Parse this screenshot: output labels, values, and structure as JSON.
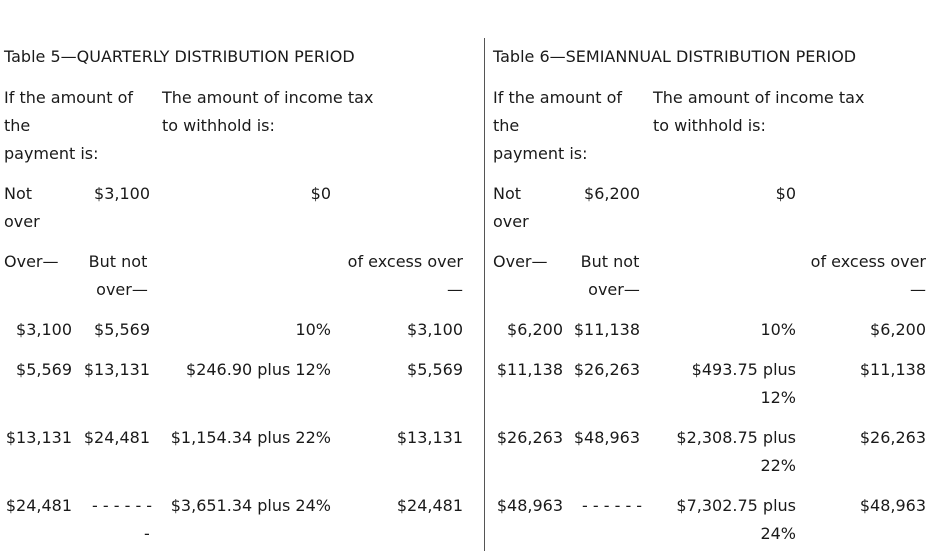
{
  "tables": [
    {
      "title": "Table 5—QUARTERLY DISTRIBUTION PERIOD",
      "header_amount": [
        "If the amount of",
        "the",
        "payment is:"
      ],
      "header_tax": [
        "The amount of income tax",
        "to withhold is:"
      ],
      "not_over_label": [
        "Not",
        "over"
      ],
      "not_over_value": "$3,100",
      "not_over_tax": "$0",
      "col_over": "Over—",
      "col_but_not": [
        "But not",
        "over—"
      ],
      "col_excess": [
        "of excess over",
        "—"
      ],
      "rows": [
        {
          "over": "$3,100",
          "but_not_over": "$5,569",
          "tax": [
            "10%"
          ],
          "excess_over": "$3,100"
        },
        {
          "over": "$5,569",
          "but_not_over": "$13,131",
          "tax": [
            "$246.90 plus 12%"
          ],
          "excess_over": "$5,569"
        },
        {
          "over": "$13,131",
          "but_not_over": "$24,481",
          "tax": [
            "$1,154.34 plus 22%"
          ],
          "excess_over": "$13,131"
        },
        {
          "over": "$24,481",
          "but_not_over": [
            "- - - - - -",
            "-"
          ],
          "tax": [
            "$3,651.34 plus 24%"
          ],
          "excess_over": "$24,481"
        }
      ]
    },
    {
      "title": "Table 6—SEMIANNUAL DISTRIBUTION PERIOD",
      "header_amount": [
        "If the amount of",
        "the",
        "payment is:"
      ],
      "header_tax": [
        "The amount of income tax",
        "to withhold is:"
      ],
      "not_over_label": [
        "Not",
        "over"
      ],
      "not_over_value": "$6,200",
      "not_over_tax": "$0",
      "col_over": "Over—",
      "col_but_not": [
        "But not",
        "over—"
      ],
      "col_excess": [
        "of excess over",
        "—"
      ],
      "rows": [
        {
          "over": "$6,200",
          "but_not_over": "$11,138",
          "tax": [
            "10%"
          ],
          "excess_over": "$6,200"
        },
        {
          "over": "$11,138",
          "but_not_over": "$26,263",
          "tax": [
            "$493.75 plus",
            "12%"
          ],
          "excess_over": "$11,138"
        },
        {
          "over": "$26,263",
          "but_not_over": "$48,963",
          "tax": [
            "$2,308.75 plus",
            "22%"
          ],
          "excess_over": "$26,263"
        },
        {
          "over": "$48,963",
          "but_not_over": [
            "- - - - - -"
          ],
          "tax": [
            "$7,302.75 plus",
            "24%"
          ],
          "excess_over": "$48,963"
        }
      ]
    }
  ]
}
